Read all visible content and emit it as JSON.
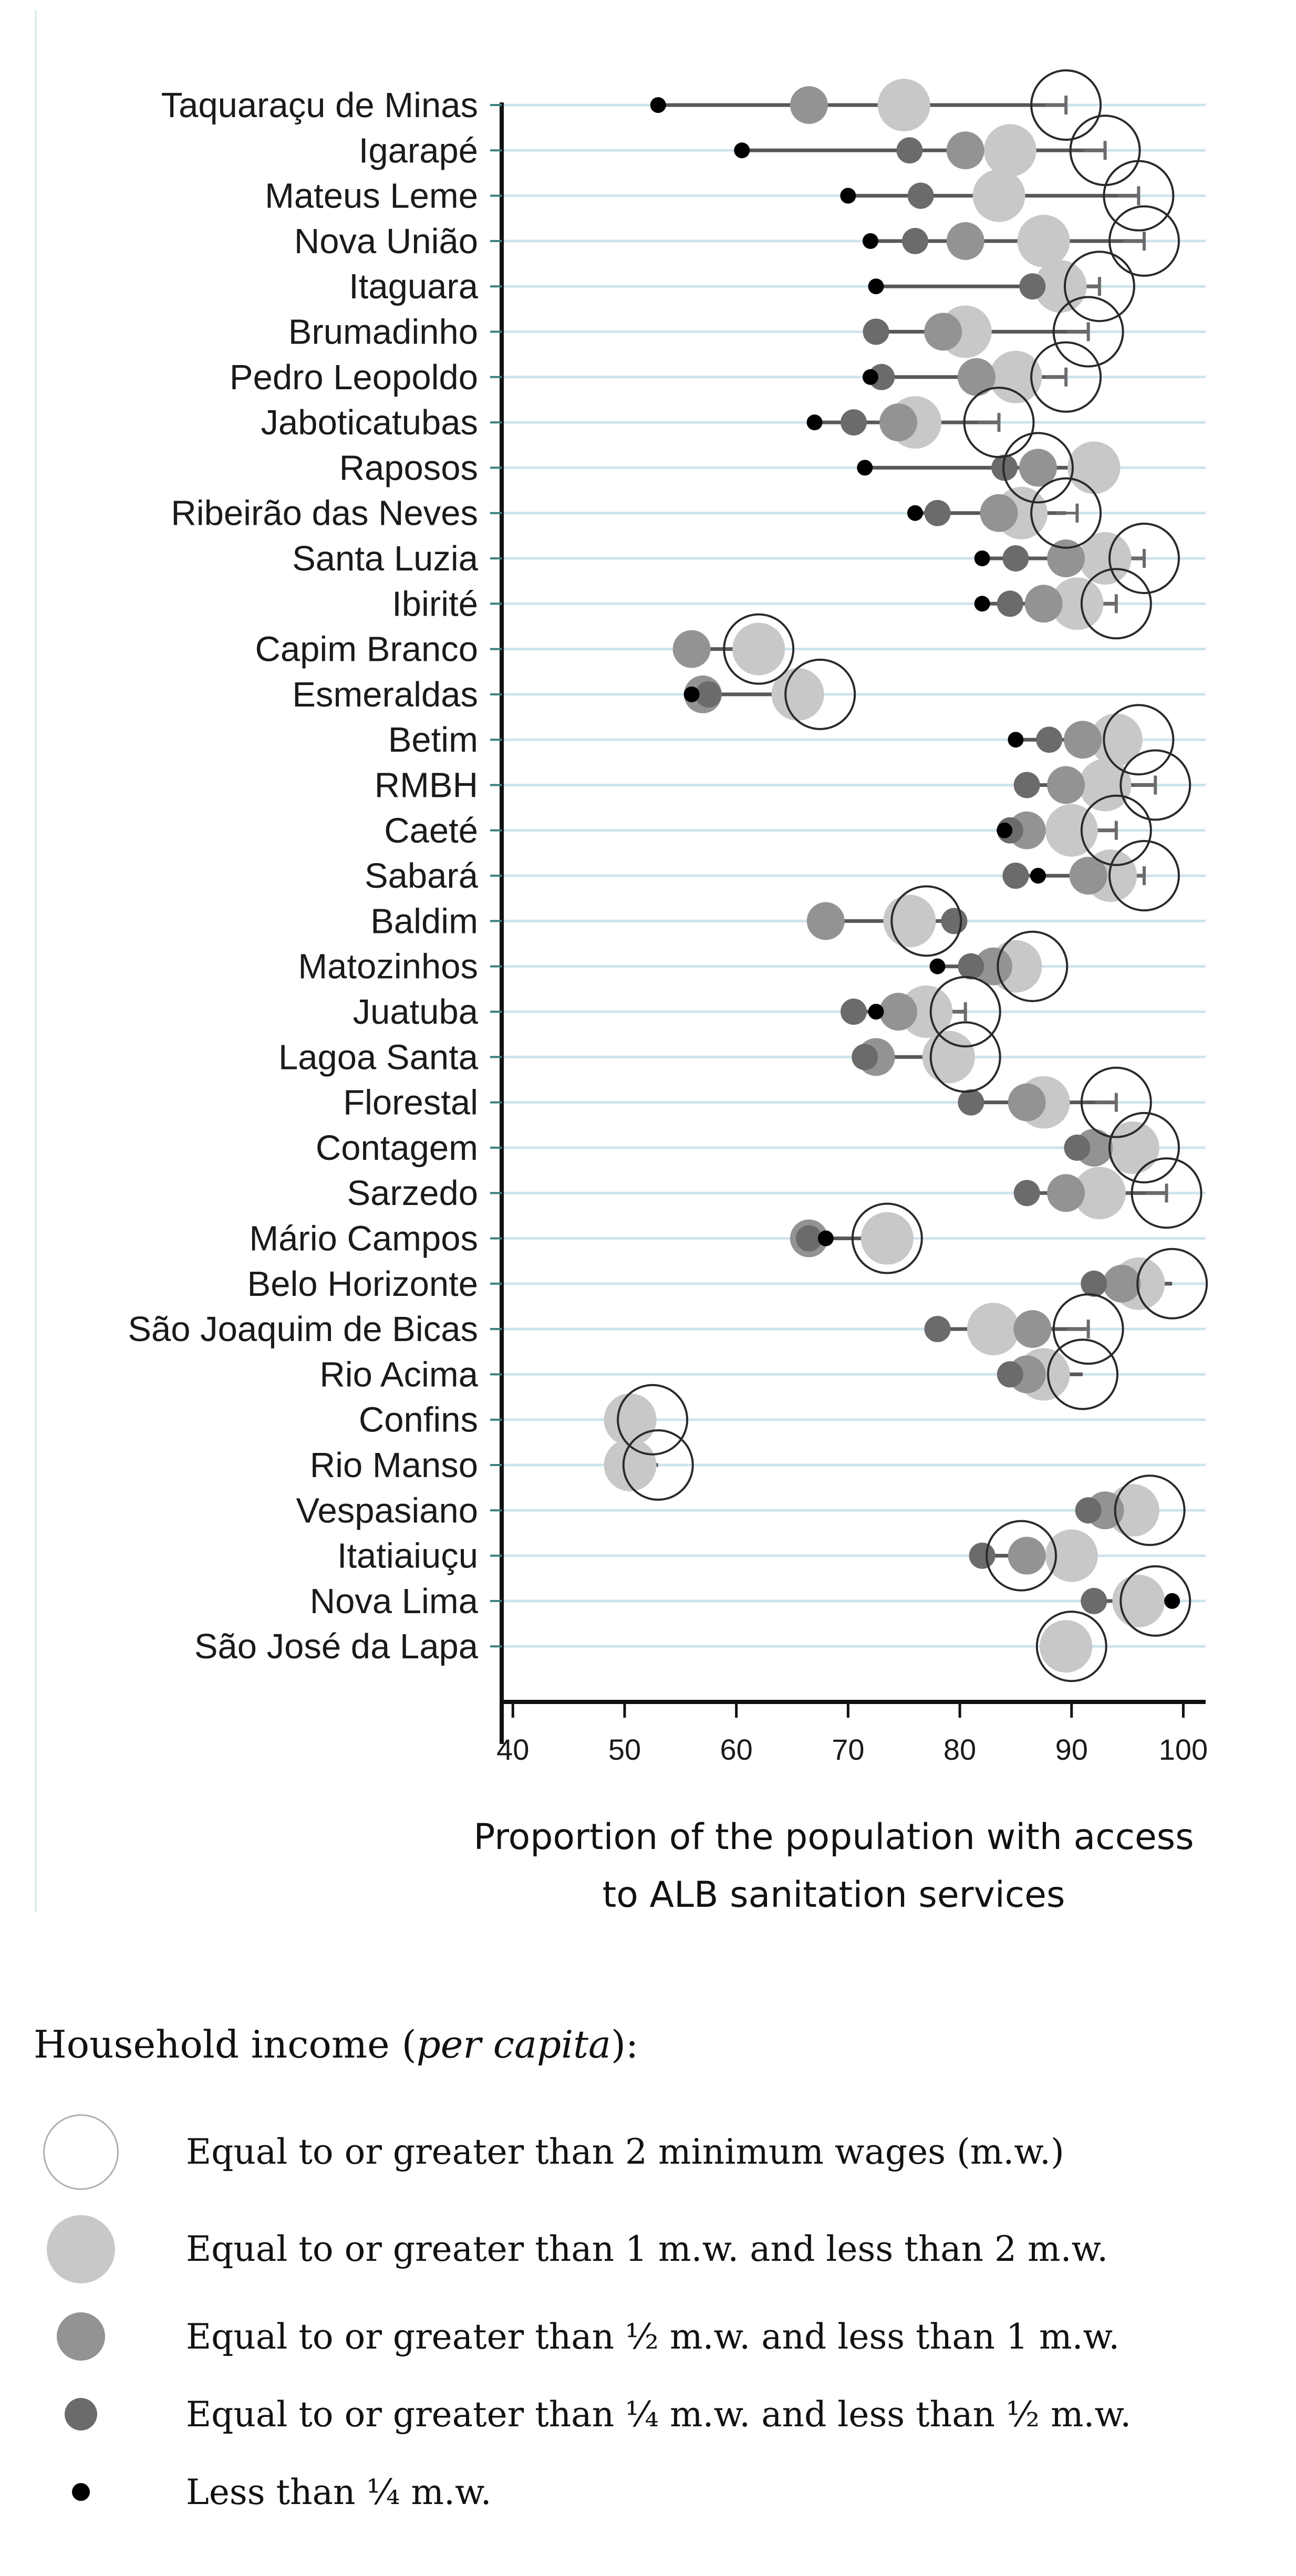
{
  "chart_data": {
    "type": "scatter",
    "title": "",
    "xlabel_lines": [
      "Proportion of the population with access",
      "to ALB sanitation services"
    ],
    "xlim": [
      39,
      102
    ],
    "xticks": [
      40,
      50,
      60,
      70,
      80,
      90,
      100
    ],
    "grid": "horizontal",
    "groups": [
      {
        "key": "ge2",
        "name": "Equal to or greater than 2 minimum wages (m.w.)",
        "style": "open-large",
        "color": "#ffffff"
      },
      {
        "key": "1to2",
        "name": "Equal to or greater than 1 m.w. and less than 2 m.w.",
        "style": "filled-large",
        "color": "#c8c8c8"
      },
      {
        "key": "half_to1",
        "name": "Equal to or greater than ½ m.w. and less than 1 m.w.",
        "style": "filled-medium",
        "color": "#939393"
      },
      {
        "key": "quarter_to_half",
        "name": "Equal to or greater than ¼ m.w. and less than ½ m.w.",
        "style": "filled-small",
        "color": "#6b6b6b"
      },
      {
        "key": "lt_quarter",
        "name": "Less than ¼ m.w.",
        "style": "filled-tiny",
        "color": "#000000"
      }
    ],
    "categories": [
      "Taquaraçu de Minas",
      "Igarapé",
      "Mateus Leme",
      "Nova União",
      "Itaguara",
      "Brumadinho",
      "Pedro Leopoldo",
      "Jaboticatubas",
      "Raposos",
      "Ribeirão das Neves",
      "Santa Luzia",
      "Ibirité",
      "Capim Branco",
      "Esmeraldas",
      "Betim",
      "RMBH",
      "Caeté",
      "Sabará",
      "Baldim",
      "Matozinhos",
      "Juatuba",
      "Lagoa Santa",
      "Florestal",
      "Contagem",
      "Sarzedo",
      "Mário Campos",
      "Belo Horizonte",
      "São Joaquim de Bicas",
      "Rio Acima",
      "Confins",
      "Rio Manso",
      "Vespasiano",
      "Itatiaiuçu",
      "Nova Lima",
      "São José da Lapa"
    ],
    "series": [
      {
        "name": "Less than ¼ m.w.",
        "key": "lt_quarter",
        "values": [
          53,
          60.5,
          70,
          72,
          72.5,
          null,
          72,
          67,
          71.5,
          76,
          82,
          82,
          null,
          56,
          85,
          null,
          84,
          87,
          null,
          78,
          72.5,
          null,
          null,
          null,
          null,
          68,
          null,
          null,
          null,
          null,
          null,
          null,
          null,
          99,
          null
        ]
      },
      {
        "name": "Equal to or greater than ¼ m.w. and less than ½ m.w.",
        "key": "quarter_to_half",
        "values": [
          null,
          75.5,
          76.5,
          76,
          86.5,
          72.5,
          73,
          70.5,
          84,
          78,
          85,
          84.5,
          null,
          57.5,
          88,
          86,
          84.5,
          85,
          79.5,
          81,
          70.5,
          71.5,
          81,
          90.5,
          86,
          66.5,
          92,
          78,
          84.5,
          null,
          null,
          91.5,
          82,
          92,
          null
        ]
      },
      {
        "name": "Equal to or greater than ½ m.w. and less than 1 m.w.",
        "key": "half_to1",
        "values": [
          66.5,
          80.5,
          null,
          80.5,
          null,
          78.5,
          81.5,
          74.5,
          87,
          83.5,
          89.5,
          87.5,
          56,
          57,
          91,
          89.5,
          86,
          91.5,
          68,
          83,
          74.5,
          72.5,
          86,
          92,
          89.5,
          66.5,
          94.5,
          86.5,
          86,
          null,
          null,
          93,
          86,
          null,
          null
        ]
      },
      {
        "name": "Equal to or greater than 1 m.w. and less than 2 m.w.",
        "key": "1to2",
        "values": [
          75,
          84.5,
          83.5,
          87.5,
          89,
          80.5,
          85,
          76,
          92,
          85.5,
          93,
          90.5,
          62,
          65.5,
          94,
          93,
          90,
          93.5,
          75.5,
          85,
          77,
          79,
          87.5,
          95.5,
          92.5,
          73.5,
          96,
          83,
          87.5,
          50.5,
          50.5,
          95.5,
          90,
          96,
          89.5
        ]
      },
      {
        "name": "Equal to or greater than 2 minimum wages (m.w.)",
        "key": "ge2",
        "values": [
          89.5,
          93,
          96,
          96.5,
          92.5,
          91.5,
          89.5,
          83.5,
          87,
          89.5,
          96.5,
          94,
          62,
          67.5,
          96,
          97.5,
          94,
          96.5,
          77,
          86.5,
          80.5,
          80.5,
          94,
          96.5,
          98.5,
          73.5,
          99,
          91.5,
          91,
          52.5,
          53,
          97,
          85.5,
          97.5,
          90
        ]
      }
    ],
    "errors": [
      {
        "category": "Taquaraçu de Minas",
        "to": 89.5
      },
      {
        "category": "Igarapé",
        "to": 93
      },
      {
        "category": "Mateus Leme",
        "to": 96
      },
      {
        "category": "Nova União",
        "to": 96.5
      },
      {
        "category": "Itaguara",
        "to": 92.5
      },
      {
        "category": "Brumadinho",
        "to": 91.5
      },
      {
        "category": "Pedro Leopoldo",
        "to": 89.5
      },
      {
        "category": "Jaboticatubas",
        "to": 83.5
      },
      {
        "category": "Ribeirão das Neves",
        "to": 90.5
      },
      {
        "category": "Santa Luzia",
        "to": 96.5
      },
      {
        "category": "Ibirité",
        "to": 94
      },
      {
        "category": "Esmeraldas",
        "to": 67.5
      },
      {
        "category": "RMBH",
        "to": 97.5
      },
      {
        "category": "Caeté",
        "to": 94
      },
      {
        "category": "Sabará",
        "to": 96.5
      },
      {
        "category": "Juatuba",
        "to": 80.5
      },
      {
        "category": "Lagoa Santa",
        "to": 80.5
      },
      {
        "category": "Florestal",
        "to": 94
      },
      {
        "category": "Sarzedo",
        "to": 98.5
      },
      {
        "category": "São Joaquim de Bicas",
        "to": 91.5
      }
    ]
  },
  "legend": {
    "title_prefix": "Household income (",
    "title_italic": "per capita",
    "title_suffix": "):",
    "items": [
      {
        "label": "Equal to or greater than 2 minimum wages (m.w.)"
      },
      {
        "label": "Equal to or greater than 1 m.w. and less than 2 m.w."
      },
      {
        "label": "Equal to or greater than ½ m.w. and less than 1 m.w."
      },
      {
        "label": "Equal to or greater than ¼ m.w. and less than ½ m.w."
      },
      {
        "label": "Less than ¼ m.w."
      }
    ]
  }
}
